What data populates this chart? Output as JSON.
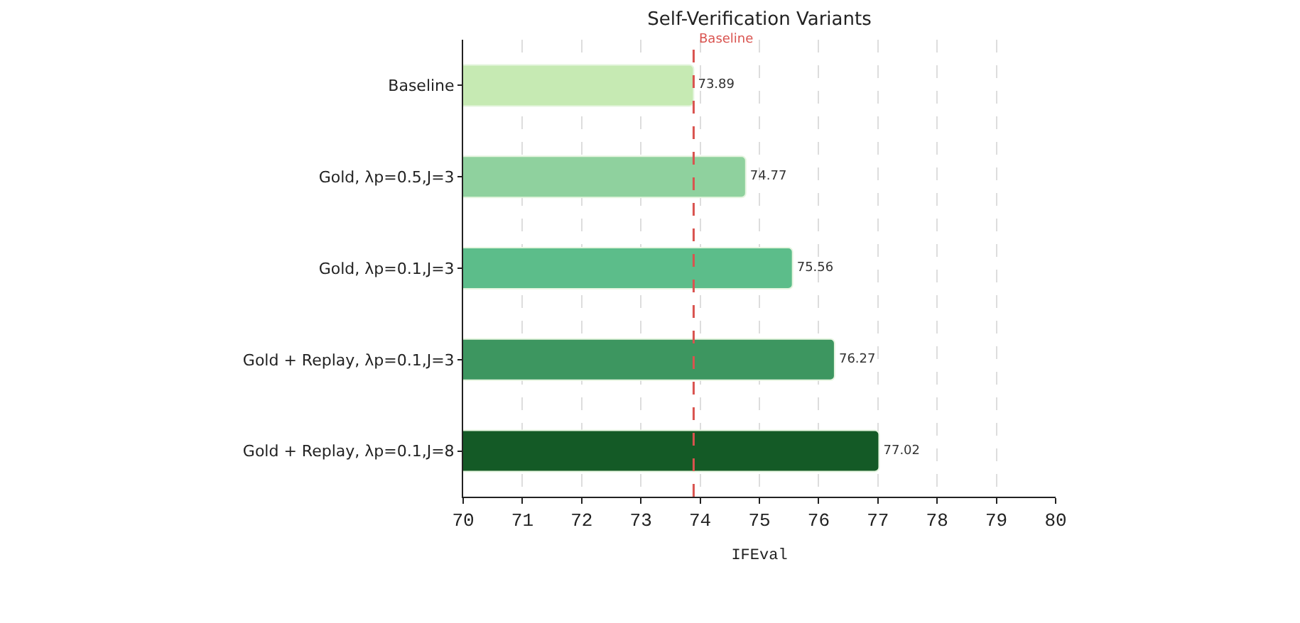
{
  "chart_data": {
    "type": "bar",
    "orientation": "horizontal",
    "title": "Self-Verification Variants",
    "xlabel": "IFEval",
    "categories": [
      "Baseline",
      "Gold, λp=0.5,J=3",
      "Gold, λp=0.1,J=3",
      "Gold + Replay, λp=0.1,J=3",
      "Gold + Replay, λp=0.1,J=8"
    ],
    "values": [
      73.89,
      74.77,
      75.56,
      76.27,
      77.02
    ],
    "colors": [
      "#c6eab3",
      "#8fd19e",
      "#5cbd8a",
      "#3d9660",
      "#145a26"
    ],
    "xlim": [
      70,
      80
    ],
    "xticks": [
      70,
      71,
      72,
      73,
      74,
      75,
      76,
      77,
      78,
      79,
      80
    ],
    "grid": "x",
    "data_labels": true,
    "ref_lines": [
      {
        "axis": "x",
        "value": 73.89,
        "label": "Baseline",
        "color": "#d9534f",
        "line_style": "dashed"
      }
    ]
  }
}
